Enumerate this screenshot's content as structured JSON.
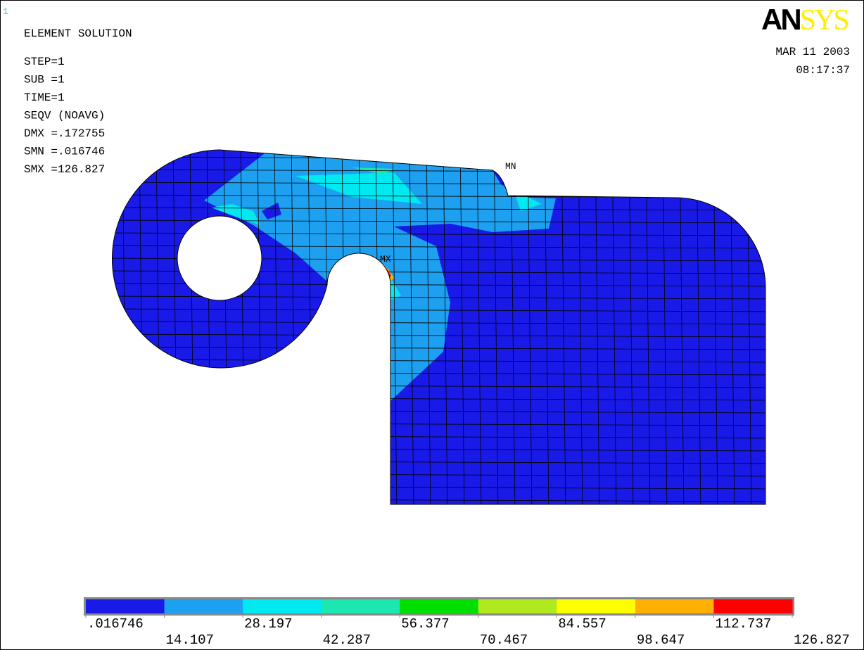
{
  "window_number": "1",
  "logo": {
    "bold": "AN",
    "light": "SYS"
  },
  "info_lines": [
    "ELEMENT SOLUTION",
    "STEP=1",
    "SUB =1",
    "TIME=1",
    "SEQV     (NOAVG)",
    "DMX =.172755",
    "SMN =.016746",
    "SMX =126.827"
  ],
  "date": "MAR 11 2003",
  "time": "08:17:37",
  "markers": {
    "min": "MN",
    "max": "MX"
  },
  "legend": {
    "labels": [
      ".016746",
      "14.107",
      "28.197",
      "42.287",
      "56.377",
      "70.467",
      "84.557",
      "98.647",
      "112.737",
      "126.827"
    ],
    "colors": [
      "#1a1ae8",
      "#1ea0f0",
      "#00e8f0",
      "#1ee6b0",
      "#00e000",
      "#b0ea1e",
      "#ffff00",
      "#ffb000",
      "#ff0000"
    ]
  }
}
